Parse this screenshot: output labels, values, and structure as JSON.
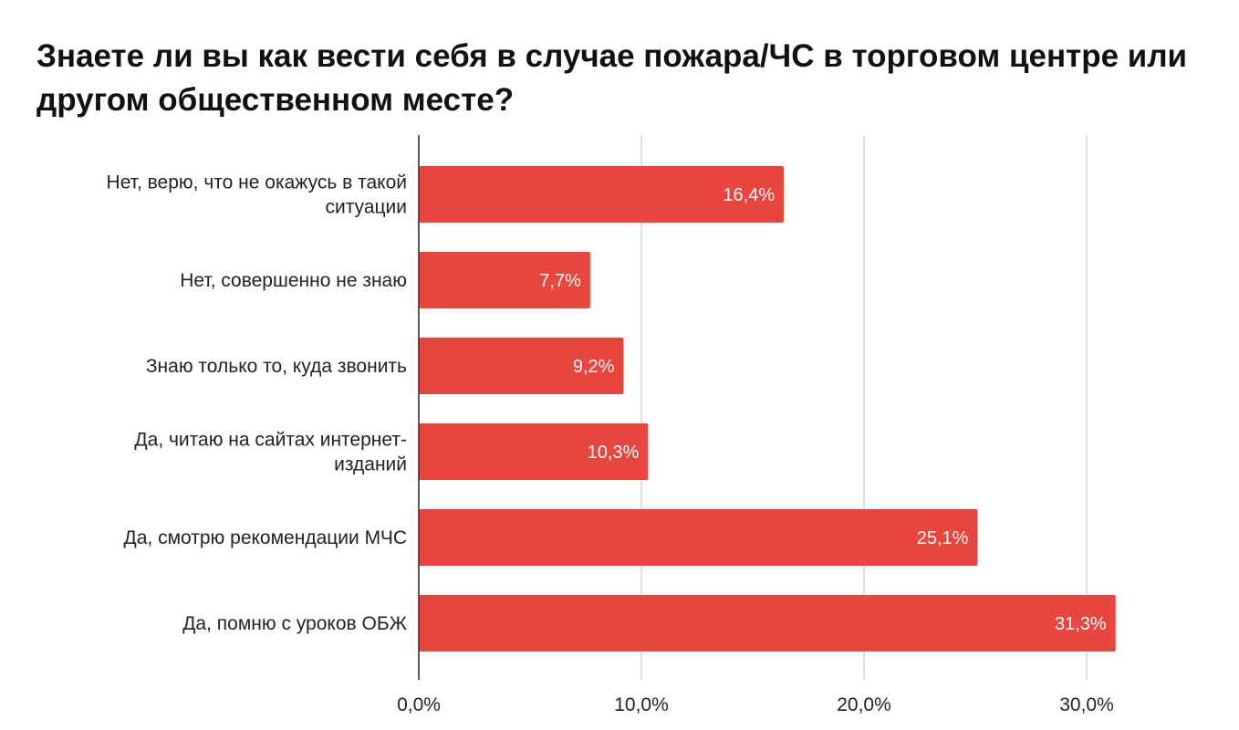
{
  "chart_data": {
    "type": "bar",
    "orientation": "horizontal",
    "title": "Знаете ли вы как вести себя в случае пожара/ЧС в торговом центре или другом общественном месте?",
    "categories": [
      "Нет, верю, что не окажусь в такой ситуации",
      "Нет, совершенно не знаю",
      "Знаю только то, куда звонить",
      "Да, читаю на сайтах интернет-изданий",
      "Да, смотрю рекомендации МЧС",
      "Да, помню с уроков ОБЖ"
    ],
    "category_lines": [
      [
        "Нет, верю, что не окажусь в такой",
        "ситуации"
      ],
      [
        "Нет, совершенно не знаю"
      ],
      [
        "Знаю только то, куда звонить"
      ],
      [
        "Да, читаю на сайтах интернет-",
        "изданий"
      ],
      [
        "Да, смотрю рекомендации МЧС"
      ],
      [
        "Да, помню с уроков ОБЖ"
      ]
    ],
    "values": [
      16.4,
      7.7,
      9.2,
      10.3,
      25.1,
      31.3
    ],
    "data_labels": [
      "16,4%",
      "7,7%",
      "9,2%",
      "10,3%",
      "25,1%",
      "31,3%"
    ],
    "xlim": [
      0,
      30
    ],
    "xticks": [
      0,
      10,
      20,
      30
    ],
    "xtick_labels": [
      "0,0%",
      "10,0%",
      "20,0%",
      "30,0%"
    ],
    "xlabel": "",
    "ylabel": "",
    "grid": true,
    "legend": "none",
    "bar_color": "#E8453C",
    "grid_color": "#cccccc",
    "axis_color": "#333333"
  }
}
